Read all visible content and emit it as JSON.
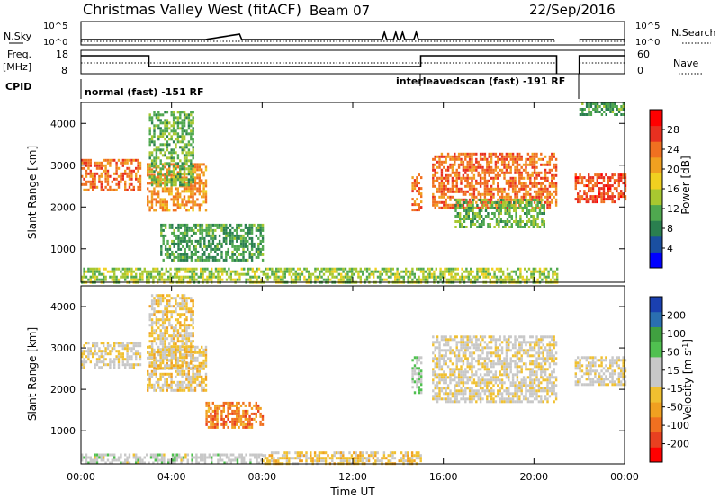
{
  "header": {
    "title": "Christmas Valley West (fitACF)",
    "beam": "Beam 07",
    "date": "22/Sep/2016"
  },
  "top_panels": {
    "nsky_label": "N.Sky",
    "nsky_ticks": [
      "10^5",
      "10^0"
    ],
    "nsearch_label": "N.Search",
    "nsearch_ticks": [
      "10^5",
      "10^0"
    ],
    "freq_label_line1": "Freq.",
    "freq_label_line2": "[MHz]",
    "freq_ticks": [
      "18",
      "8"
    ],
    "nave_label": "Nave",
    "nave_ticks": [
      "60",
      "0"
    ],
    "cpid_label": "CPID",
    "cpid_modes": [
      {
        "label": "normal (fast) -151 RF",
        "start_ut": 0,
        "end_ut": 22
      },
      {
        "label": "interleavedscan (fast) -191 RF",
        "start_ut": 15,
        "end_ut": 21
      }
    ]
  },
  "colors": {
    "power_scale": [
      "#0000ff",
      "#1a4fa0",
      "#2a7f4f",
      "#4fa84f",
      "#a8c830",
      "#f0d020",
      "#f0a020",
      "#f07020",
      "#e83020",
      "#ff0000"
    ],
    "velocity_scale": [
      "#ff0000",
      "#e84020",
      "#f07020",
      "#f0a020",
      "#f0c030",
      "#c8c8c8",
      "#c8c8c8",
      "#50c050",
      "#40a040",
      "#2a6fb0",
      "#1a40b0"
    ]
  },
  "chart_data": [
    {
      "type": "heatmap",
      "name": "power-panel",
      "ylabel": "Slant Range [km]",
      "yticks": [
        "1000",
        "2000",
        "3000",
        "4000"
      ],
      "ylim": [
        200,
        4500
      ],
      "xlim": [
        0,
        24
      ],
      "colorbar_label": "Power [dB]",
      "colorbar_ticks": [
        "4",
        "8",
        "12",
        "16",
        "20",
        "24",
        "28"
      ],
      "colorbar_range": [
        0,
        32
      ],
      "regions": [
        {
          "t0": 0.0,
          "t1": 2.6,
          "r0": 2400,
          "r1": 3150,
          "value": 24
        },
        {
          "t0": 2.9,
          "t1": 5.5,
          "r0": 1950,
          "r1": 3050,
          "value": 22
        },
        {
          "t0": 3.0,
          "t1": 5.0,
          "r0": 2500,
          "r1": 4300,
          "value": 12
        },
        {
          "t0": 3.5,
          "t1": 8.0,
          "r0": 700,
          "r1": 1600,
          "value": 10
        },
        {
          "t0": 14.6,
          "t1": 15.0,
          "r0": 1900,
          "r1": 2800,
          "value": 24
        },
        {
          "t0": 15.5,
          "t1": 21.0,
          "r0": 2000,
          "r1": 3300,
          "value": 24
        },
        {
          "t0": 16.5,
          "t1": 20.5,
          "r0": 1500,
          "r1": 2200,
          "value": 12
        },
        {
          "t0": 21.8,
          "t1": 24.0,
          "r0": 2100,
          "r1": 2800,
          "value": 26
        },
        {
          "t0": 22.0,
          "t1": 24.0,
          "r0": 4200,
          "r1": 4500,
          "value": 10
        },
        {
          "t0": 0.0,
          "t1": 21.0,
          "r0": 200,
          "r1": 550,
          "value": 14
        }
      ]
    },
    {
      "type": "heatmap",
      "name": "velocity-panel",
      "ylabel": "Slant Range [km]",
      "yticks": [
        "1000",
        "2000",
        "3000",
        "4000"
      ],
      "ylim": [
        200,
        4500
      ],
      "xlim": [
        0,
        24
      ],
      "xlabel": "Time UT",
      "xticks": [
        "00:00",
        "04:00",
        "08:00",
        "12:00",
        "16:00",
        "20:00",
        "00:00"
      ],
      "colorbar_label": "Velocity [m s^-1]",
      "colorbar_ticks": [
        "-200",
        "-100",
        "-50",
        "-15",
        "15",
        "50",
        "100",
        "200"
      ],
      "colorbar_range": [
        -250,
        250
      ],
      "regions": [
        {
          "t0": 0.0,
          "t1": 2.6,
          "r0": 2500,
          "r1": 3150,
          "value": 0
        },
        {
          "t0": 2.9,
          "t1": 5.5,
          "r0": 2000,
          "r1": 3050,
          "value": -30
        },
        {
          "t0": 3.0,
          "t1": 5.0,
          "r0": 2500,
          "r1": 4300,
          "value": -30
        },
        {
          "t0": 5.5,
          "t1": 8.0,
          "r0": 1100,
          "r1": 1700,
          "value": -120
        },
        {
          "t0": 14.6,
          "t1": 15.0,
          "r0": 1900,
          "r1": 2800,
          "value": 40
        },
        {
          "t0": 15.5,
          "t1": 21.0,
          "r0": 1700,
          "r1": 3300,
          "value": 0
        },
        {
          "t0": 21.8,
          "t1": 24.0,
          "r0": 2100,
          "r1": 2800,
          "value": 0
        },
        {
          "t0": 8.0,
          "t1": 15.0,
          "r0": 200,
          "r1": 500,
          "value": -40
        },
        {
          "t0": 0.0,
          "t1": 8.0,
          "r0": 200,
          "r1": 450,
          "value": 30
        }
      ]
    }
  ]
}
